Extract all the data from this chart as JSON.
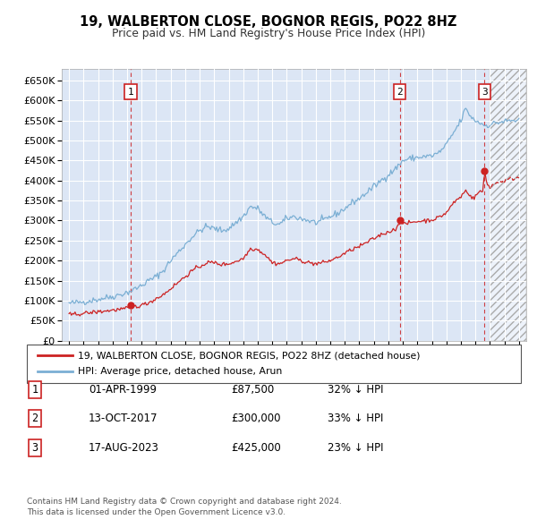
{
  "title": "19, WALBERTON CLOSE, BOGNOR REGIS, PO22 8HZ",
  "subtitle": "Price paid vs. HM Land Registry's House Price Index (HPI)",
  "ylim": [
    0,
    680000
  ],
  "yticks": [
    0,
    50000,
    100000,
    150000,
    200000,
    250000,
    300000,
    350000,
    400000,
    450000,
    500000,
    550000,
    600000,
    650000
  ],
  "xlim_start": 1994.5,
  "xlim_end": 2026.5,
  "plot_bg_color": "#dce6f5",
  "grid_color": "#ffffff",
  "sale_points": [
    {
      "date_num": 1999.25,
      "price": 87500,
      "label": "1"
    },
    {
      "date_num": 2017.79,
      "price": 300000,
      "label": "2"
    },
    {
      "date_num": 2023.63,
      "price": 425000,
      "label": "3"
    }
  ],
  "sale_lines_color": "#cc2222",
  "hpi_color": "#7bafd4",
  "price_color": "#cc2222",
  "legend_label_price": "19, WALBERTON CLOSE, BOGNOR REGIS, PO22 8HZ (detached house)",
  "legend_label_hpi": "HPI: Average price, detached house, Arun",
  "table_rows": [
    {
      "num": "1",
      "date": "01-APR-1999",
      "price": "£87,500",
      "hpi": "32% ↓ HPI"
    },
    {
      "num": "2",
      "date": "13-OCT-2017",
      "price": "£300,000",
      "hpi": "33% ↓ HPI"
    },
    {
      "num": "3",
      "date": "17-AUG-2023",
      "price": "£425,000",
      "hpi": "23% ↓ HPI"
    }
  ],
  "footnote": "Contains HM Land Registry data © Crown copyright and database right 2024.\nThis data is licensed under the Open Government Licence v3.0.",
  "future_start": 2024.0,
  "hpi_anchors": [
    [
      1995.0,
      93000
    ],
    [
      1995.5,
      95000
    ],
    [
      1996.0,
      97000
    ],
    [
      1996.5,
      100000
    ],
    [
      1997.0,
      103000
    ],
    [
      1997.5,
      107000
    ],
    [
      1998.0,
      110000
    ],
    [
      1998.5,
      115000
    ],
    [
      1999.0,
      120000
    ],
    [
      1999.5,
      128000
    ],
    [
      2000.0,
      138000
    ],
    [
      2000.5,
      150000
    ],
    [
      2001.0,
      160000
    ],
    [
      2001.5,
      175000
    ],
    [
      2002.0,
      200000
    ],
    [
      2002.5,
      220000
    ],
    [
      2003.0,
      240000
    ],
    [
      2003.5,
      260000
    ],
    [
      2004.0,
      275000
    ],
    [
      2004.5,
      285000
    ],
    [
      2005.0,
      280000
    ],
    [
      2005.5,
      275000
    ],
    [
      2006.0,
      280000
    ],
    [
      2006.5,
      295000
    ],
    [
      2007.0,
      310000
    ],
    [
      2007.5,
      335000
    ],
    [
      2008.0,
      330000
    ],
    [
      2008.5,
      310000
    ],
    [
      2009.0,
      295000
    ],
    [
      2009.5,
      290000
    ],
    [
      2010.0,
      305000
    ],
    [
      2010.5,
      310000
    ],
    [
      2011.0,
      305000
    ],
    [
      2011.5,
      300000
    ],
    [
      2012.0,
      295000
    ],
    [
      2012.5,
      300000
    ],
    [
      2013.0,
      310000
    ],
    [
      2013.5,
      318000
    ],
    [
      2014.0,
      330000
    ],
    [
      2014.5,
      345000
    ],
    [
      2015.0,
      355000
    ],
    [
      2015.5,
      370000
    ],
    [
      2016.0,
      385000
    ],
    [
      2016.5,
      400000
    ],
    [
      2017.0,
      415000
    ],
    [
      2017.5,
      430000
    ],
    [
      2018.0,
      450000
    ],
    [
      2018.5,
      455000
    ],
    [
      2019.0,
      458000
    ],
    [
      2019.5,
      460000
    ],
    [
      2020.0,
      462000
    ],
    [
      2020.5,
      470000
    ],
    [
      2021.0,
      490000
    ],
    [
      2021.5,
      520000
    ],
    [
      2022.0,
      550000
    ],
    [
      2022.3,
      580000
    ],
    [
      2022.5,
      570000
    ],
    [
      2022.8,
      555000
    ],
    [
      2023.0,
      550000
    ],
    [
      2023.3,
      545000
    ],
    [
      2023.5,
      540000
    ],
    [
      2023.8,
      538000
    ],
    [
      2024.0,
      540000
    ],
    [
      2024.5,
      545000
    ],
    [
      2025.0,
      548000
    ],
    [
      2025.5,
      550000
    ],
    [
      2026.0,
      550000
    ]
  ],
  "price_anchors": [
    [
      1995.0,
      65000
    ],
    [
      1995.5,
      66000
    ],
    [
      1996.0,
      68000
    ],
    [
      1996.5,
      70000
    ],
    [
      1997.0,
      72000
    ],
    [
      1997.5,
      74000
    ],
    [
      1998.0,
      76000
    ],
    [
      1998.5,
      78000
    ],
    [
      1999.0,
      80000
    ],
    [
      1999.25,
      87500
    ],
    [
      1999.5,
      85000
    ],
    [
      2000.0,
      88000
    ],
    [
      2000.5,
      95000
    ],
    [
      2001.0,
      105000
    ],
    [
      2001.5,
      115000
    ],
    [
      2002.0,
      130000
    ],
    [
      2002.5,
      145000
    ],
    [
      2003.0,
      160000
    ],
    [
      2003.5,
      175000
    ],
    [
      2004.0,
      185000
    ],
    [
      2004.5,
      195000
    ],
    [
      2005.0,
      195000
    ],
    [
      2005.5,
      190000
    ],
    [
      2006.0,
      192000
    ],
    [
      2006.5,
      198000
    ],
    [
      2007.0,
      205000
    ],
    [
      2007.5,
      230000
    ],
    [
      2008.0,
      228000
    ],
    [
      2008.5,
      215000
    ],
    [
      2009.0,
      195000
    ],
    [
      2009.5,
      192000
    ],
    [
      2010.0,
      200000
    ],
    [
      2010.5,
      205000
    ],
    [
      2011.0,
      200000
    ],
    [
      2011.5,
      195000
    ],
    [
      2012.0,
      192000
    ],
    [
      2012.5,
      195000
    ],
    [
      2013.0,
      200000
    ],
    [
      2013.5,
      208000
    ],
    [
      2014.0,
      218000
    ],
    [
      2014.5,
      228000
    ],
    [
      2015.0,
      235000
    ],
    [
      2015.5,
      245000
    ],
    [
      2016.0,
      255000
    ],
    [
      2016.5,
      265000
    ],
    [
      2017.0,
      272000
    ],
    [
      2017.5,
      278000
    ],
    [
      2017.79,
      300000
    ],
    [
      2018.0,
      290000
    ],
    [
      2018.5,
      295000
    ],
    [
      2019.0,
      298000
    ],
    [
      2019.5,
      300000
    ],
    [
      2020.0,
      302000
    ],
    [
      2020.5,
      308000
    ],
    [
      2021.0,
      320000
    ],
    [
      2021.5,
      345000
    ],
    [
      2022.0,
      360000
    ],
    [
      2022.3,
      375000
    ],
    [
      2022.5,
      370000
    ],
    [
      2022.8,
      355000
    ],
    [
      2023.0,
      360000
    ],
    [
      2023.3,
      375000
    ],
    [
      2023.5,
      370000
    ],
    [
      2023.63,
      425000
    ],
    [
      2023.8,
      390000
    ],
    [
      2024.0,
      385000
    ],
    [
      2024.5,
      395000
    ],
    [
      2025.0,
      400000
    ],
    [
      2025.5,
      405000
    ],
    [
      2026.0,
      408000
    ]
  ]
}
